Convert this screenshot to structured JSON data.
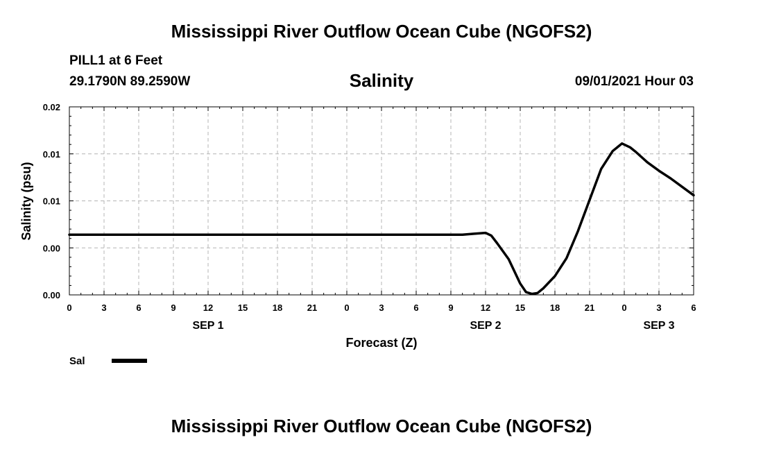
{
  "header": {
    "title": "Mississippi River Outflow Ocean Cube (NGOFS2)",
    "station": "PILL1 at 6 Feet",
    "coords": "29.1790N  89.2590W",
    "variable": "Salinity",
    "datetime": "09/01/2021 Hour 03"
  },
  "footer": {
    "title": "Mississippi River Outflow Ocean Cube (NGOFS2)"
  },
  "chart_data": {
    "type": "line",
    "xlabel": "Forecast (Z)",
    "ylabel": "Salinity (psu)",
    "x_unit": "hours since SEP 1 00Z",
    "xlim": [
      0,
      54
    ],
    "ylim": [
      0.0,
      0.02
    ],
    "x_ticks": [
      {
        "h": 0,
        "label": "0"
      },
      {
        "h": 3,
        "label": "3"
      },
      {
        "h": 6,
        "label": "6"
      },
      {
        "h": 9,
        "label": "9"
      },
      {
        "h": 12,
        "label": "12"
      },
      {
        "h": 15,
        "label": "15"
      },
      {
        "h": 18,
        "label": "18"
      },
      {
        "h": 21,
        "label": "21"
      },
      {
        "h": 24,
        "label": "0"
      },
      {
        "h": 27,
        "label": "3"
      },
      {
        "h": 30,
        "label": "6"
      },
      {
        "h": 33,
        "label": "9"
      },
      {
        "h": 36,
        "label": "12"
      },
      {
        "h": 39,
        "label": "15"
      },
      {
        "h": 42,
        "label": "18"
      },
      {
        "h": 45,
        "label": "21"
      },
      {
        "h": 48,
        "label": "0"
      },
      {
        "h": 51,
        "label": "3"
      },
      {
        "h": 54,
        "label": "6"
      }
    ],
    "y_ticks": [
      {
        "v": 0.0,
        "label": "0.00"
      },
      {
        "v": 0.005,
        "label": "0.00"
      },
      {
        "v": 0.01,
        "label": "0.01"
      },
      {
        "v": 0.015,
        "label": "0.01"
      },
      {
        "v": 0.02,
        "label": "0.02"
      }
    ],
    "date_labels": [
      {
        "h": 12,
        "label": "SEP 1"
      },
      {
        "h": 36,
        "label": "SEP 2"
      },
      {
        "h": 51,
        "label": "SEP 3"
      }
    ],
    "grid": true,
    "series": [
      {
        "name": "Sal",
        "points": [
          [
            0,
            0.0064
          ],
          [
            6,
            0.0064
          ],
          [
            12,
            0.0064
          ],
          [
            18,
            0.0064
          ],
          [
            24,
            0.0064
          ],
          [
            30,
            0.0064
          ],
          [
            34,
            0.0064
          ],
          [
            35,
            0.0065
          ],
          [
            36,
            0.0066
          ],
          [
            36.5,
            0.0063
          ],
          [
            37,
            0.0055
          ],
          [
            38,
            0.0038
          ],
          [
            39,
            0.0012
          ],
          [
            39.5,
            0.0003
          ],
          [
            40,
            0.0001
          ],
          [
            40.5,
            0.0002
          ],
          [
            41,
            0.0007
          ],
          [
            42,
            0.002
          ],
          [
            43,
            0.0039
          ],
          [
            44,
            0.0068
          ],
          [
            45,
            0.0101
          ],
          [
            46,
            0.0134
          ],
          [
            47,
            0.0153
          ],
          [
            47.8,
            0.0161
          ],
          [
            48.5,
            0.0157
          ],
          [
            49,
            0.0152
          ],
          [
            50,
            0.0141
          ],
          [
            51,
            0.0132
          ],
          [
            52,
            0.0124
          ],
          [
            53,
            0.0115
          ],
          [
            54,
            0.0106
          ]
        ]
      }
    ],
    "legend": [
      {
        "name": "Sal"
      }
    ]
  }
}
